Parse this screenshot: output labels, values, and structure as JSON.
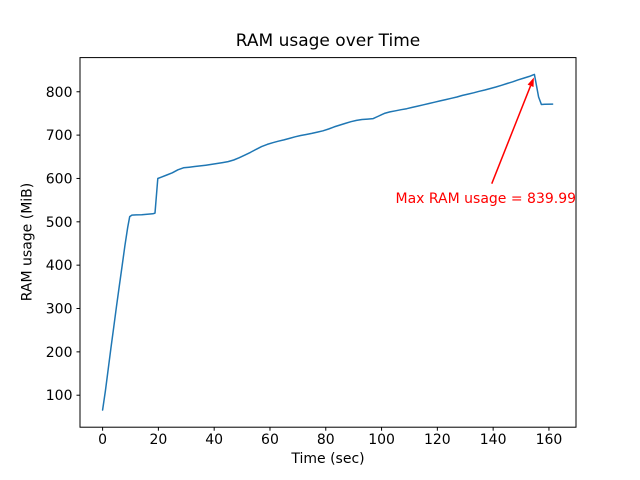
{
  "chart_data": {
    "type": "line",
    "title": "RAM usage over Time",
    "xlabel": "Time (sec)",
    "ylabel": "RAM usage (MiB)",
    "grid": false,
    "legend": null,
    "xlim": [
      -8.1,
      169.7
    ],
    "ylim": [
      26.2,
      878.8
    ],
    "xticks": [
      0,
      20,
      40,
      60,
      80,
      100,
      120,
      140,
      160
    ],
    "yticks": [
      100,
      200,
      300,
      400,
      500,
      600,
      700,
      800
    ],
    "line_color": "#1f77b4",
    "spine_color": "#000000",
    "series": [
      {
        "name": "RAM usage",
        "x": [
          0,
          1,
          2,
          3,
          4,
          5,
          6,
          7,
          8,
          9,
          9.7,
          10.5,
          12,
          14,
          16,
          18,
          18.8,
          19.8,
          21,
          23,
          25,
          27,
          29,
          31,
          33,
          35,
          37,
          39,
          41,
          43,
          45,
          47,
          49,
          51,
          53,
          55,
          57,
          59,
          61,
          63,
          65,
          67,
          69,
          71,
          73,
          75,
          77,
          79,
          81,
          83,
          85,
          87,
          89,
          91,
          93,
          95,
          97,
          99,
          101,
          103,
          105,
          107,
          109,
          111,
          113,
          115,
          117,
          119,
          121,
          123,
          125,
          127,
          129,
          131,
          133,
          135,
          137,
          139,
          141,
          143,
          145,
          147,
          149,
          151,
          153,
          154.3,
          154.8,
          156.3,
          157.3,
          158.5,
          161.3
        ],
        "y": [
          65.9,
          110,
          160,
          210,
          258,
          305,
          352,
          398,
          445,
          487,
          512,
          515.5,
          516,
          516.5,
          517.5,
          518.5,
          520,
          600,
          603,
          608,
          613,
          620,
          624.5,
          626,
          627.5,
          629,
          630.5,
          632.5,
          634.5,
          636.5,
          639,
          642.5,
          648,
          654,
          660,
          667,
          673.5,
          678.5,
          682.5,
          686,
          689,
          692.5,
          696,
          699,
          701.5,
          704,
          707,
          710,
          714,
          719,
          723,
          727,
          731,
          734,
          736,
          737,
          738,
          744,
          750,
          753.5,
          756,
          758.5,
          761,
          764,
          767,
          770,
          773,
          776,
          779,
          782,
          785,
          788,
          791.5,
          794.5,
          797.5,
          801,
          804,
          807.5,
          811,
          815,
          819,
          823,
          827.5,
          831.5,
          835.5,
          839,
          839.99,
          788,
          770.5,
          771,
          771.5
        ]
      }
    ],
    "annotation": {
      "text": "Max RAM usage = 839.99",
      "color": "#ff0000",
      "max_value": "839.99",
      "text_pos": [
        105,
        555
      ],
      "arrow_tail": [
        139.5,
        588
      ],
      "arrow_tip": [
        154.6,
        833
      ]
    }
  }
}
